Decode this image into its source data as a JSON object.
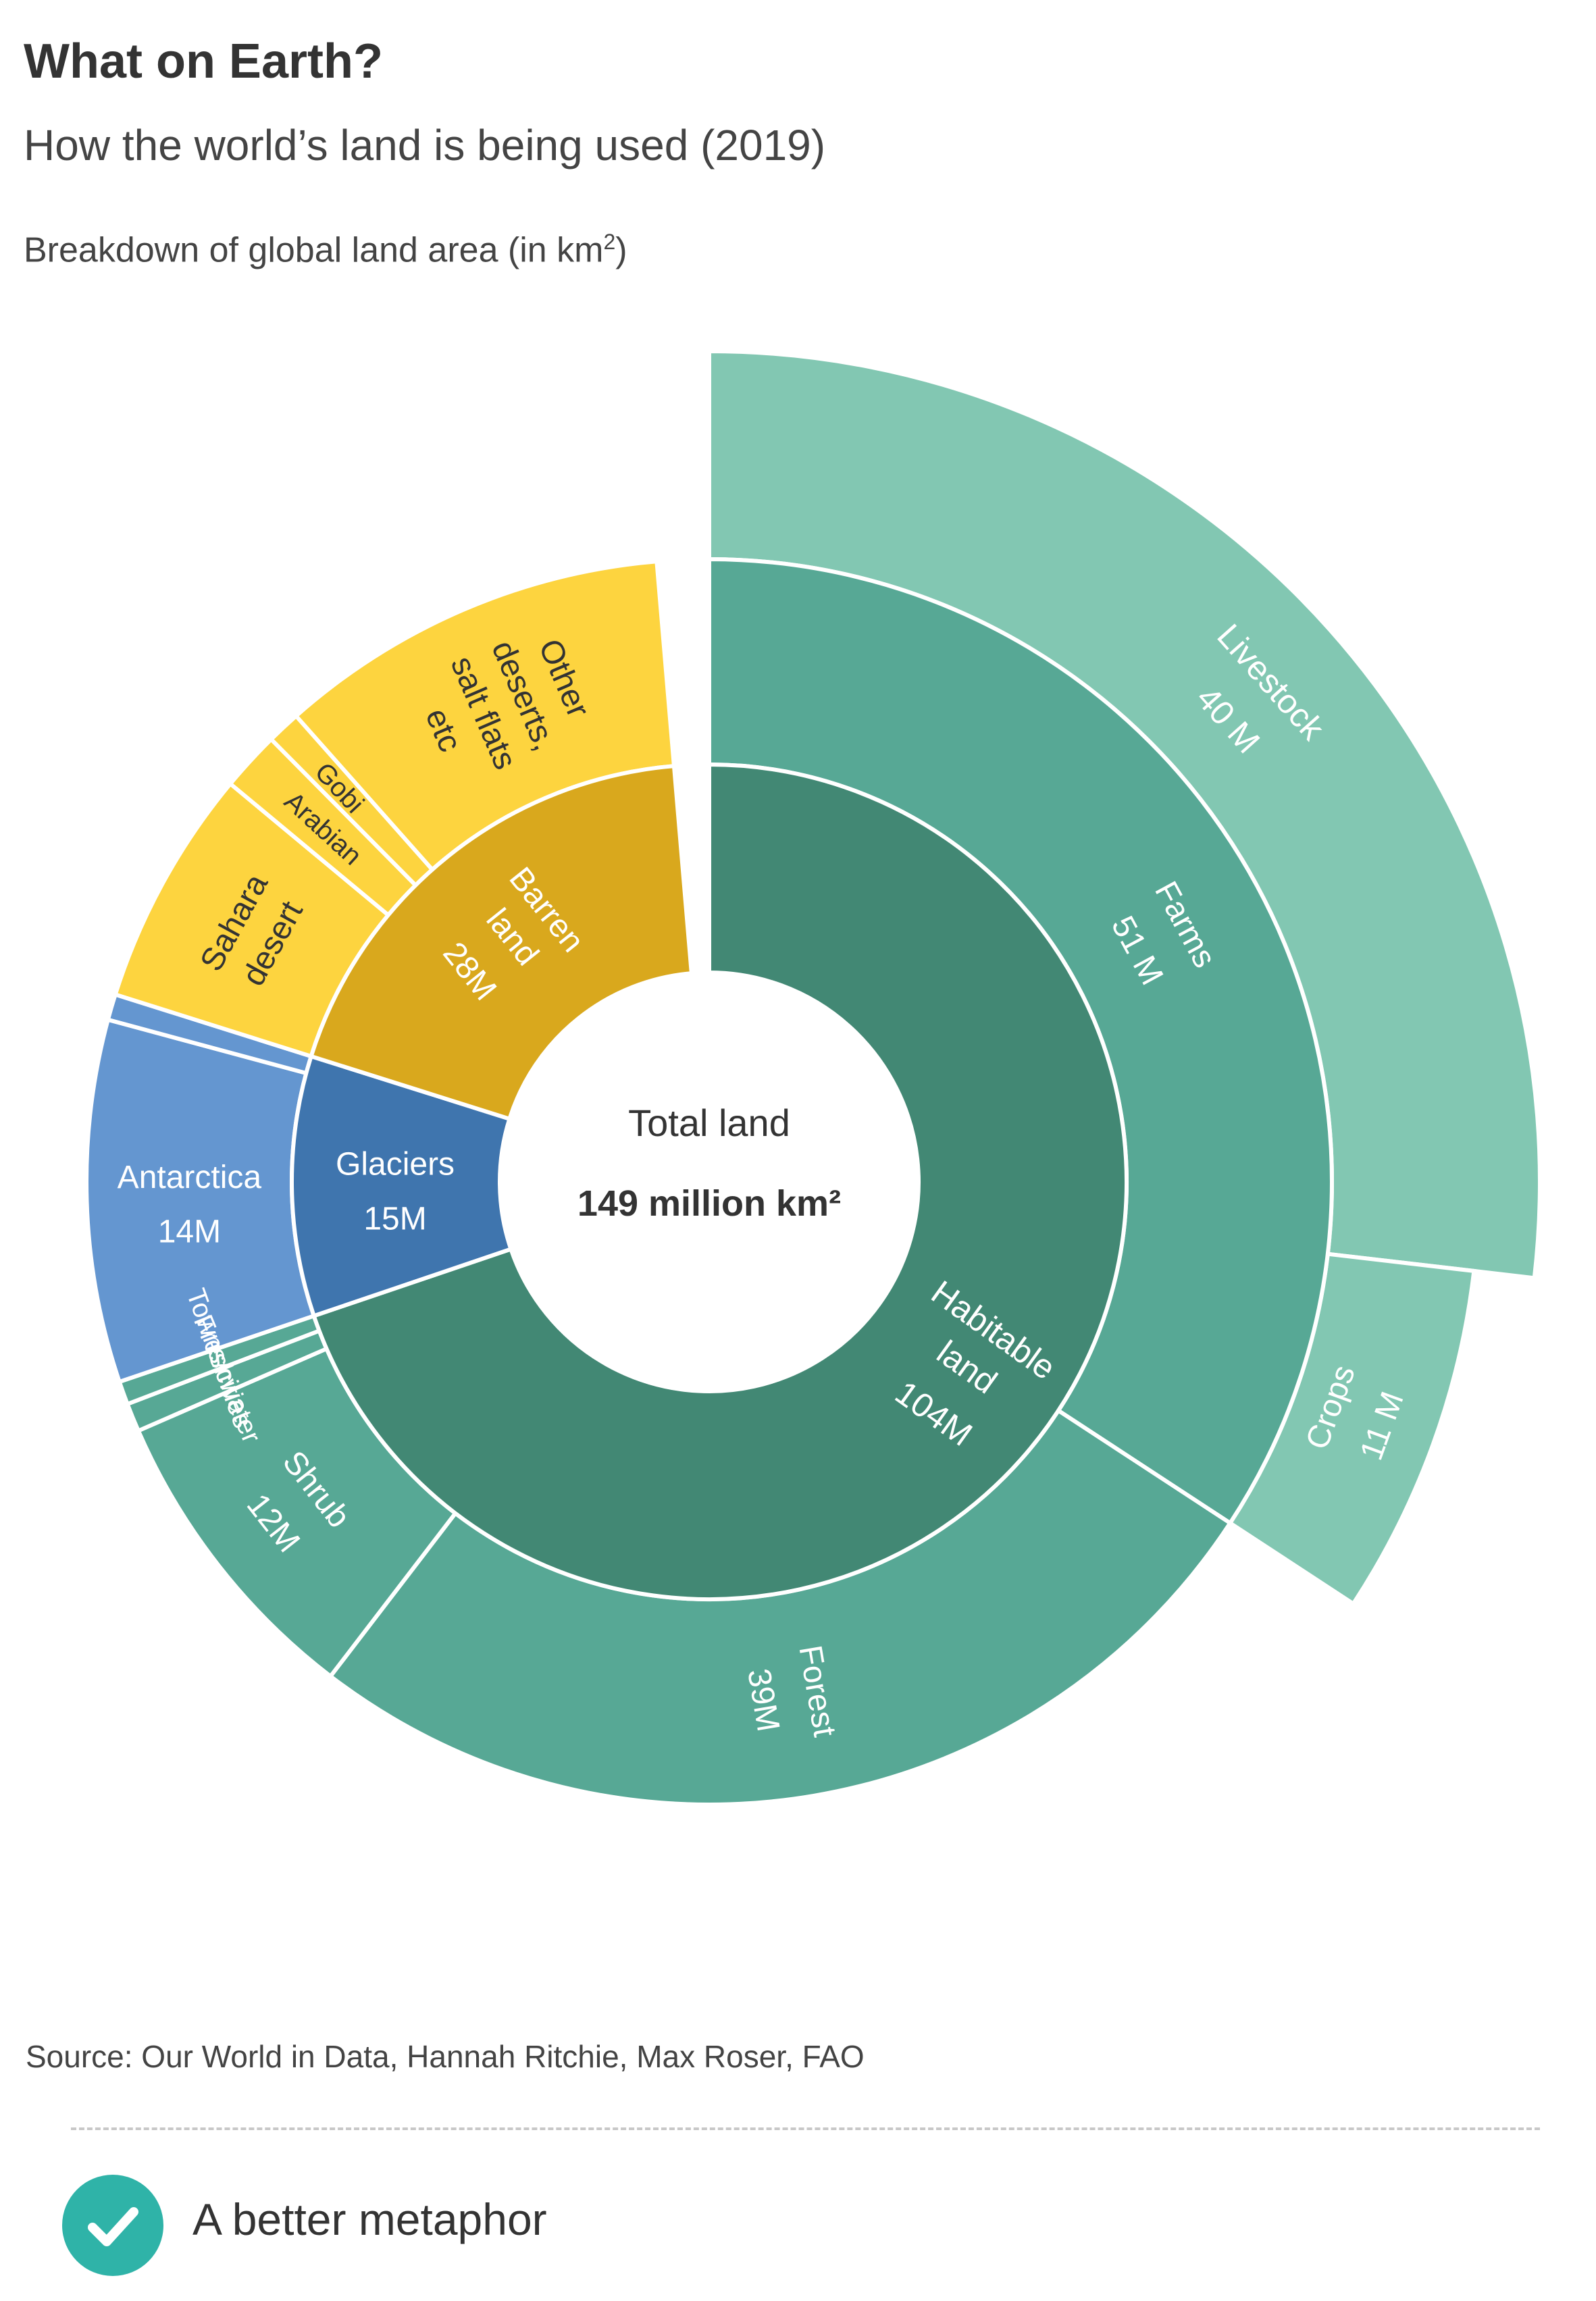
{
  "header": {
    "title": "What on Earth?",
    "subtitle": "How the world’s land is being used (2019)",
    "caption_prefix": "Breakdown of global land area (in km",
    "caption_sup": "2",
    "caption_suffix": ")"
  },
  "chart_data": {
    "type": "sunburst",
    "center": {
      "line1": "Total land",
      "line2": "149 million km²",
      "total": 149,
      "unit": "million km²"
    },
    "rings": [
      {
        "level": 1,
        "segments": [
          {
            "key": "habitable",
            "lines": [
              "Habitable",
              "land",
              "104M"
            ],
            "value": 104,
            "color": "#428874",
            "label_color": "#ffffff"
          },
          {
            "key": "glaciers",
            "lines": [
              "Glaciers",
              "15M"
            ],
            "value": 15,
            "color": "#3f75ae",
            "label_color": "#ffffff"
          },
          {
            "key": "barren",
            "lines": [
              "Barren",
              "land",
              "28M"
            ],
            "value": 28,
            "color": "#d9a81d",
            "label_color": "#ffffff"
          }
        ]
      },
      {
        "level": 2,
        "segments": [
          {
            "key": "farms",
            "parent": "habitable",
            "lines": [
              "Farms",
              "51 M"
            ],
            "value": 51,
            "color": "#57a895",
            "label_color": "#ffffff"
          },
          {
            "key": "forest",
            "parent": "habitable",
            "lines": [
              "Forest",
              "39M"
            ],
            "value": 39,
            "color": "#57a895",
            "label_color": "#ffffff"
          },
          {
            "key": "shrub",
            "parent": "habitable",
            "lines": [
              "Shrub",
              "12M"
            ],
            "value": 12,
            "color": "#57a895",
            "label_color": "#ffffff"
          },
          {
            "key": "freshwater",
            "parent": "habitable",
            "lines": [
              "Freshwater"
            ],
            "value": 1.1,
            "color": "#57a895",
            "label_color": "#ffffff"
          },
          {
            "key": "towns",
            "parent": "habitable",
            "lines": [
              "Towns/cities"
            ],
            "value": 0.9,
            "color": "#57a895",
            "label_color": "#ffffff"
          },
          {
            "key": "antarctica",
            "parent": "glaciers",
            "lines": [
              "Antarctica",
              "14M"
            ],
            "value": 14,
            "color": "#6496d0",
            "label_color": "#ffffff"
          },
          {
            "key": "glaciers_other",
            "parent": "glaciers",
            "lines": [],
            "value": 1,
            "color": "#6496d0",
            "label_color": "#ffffff"
          },
          {
            "key": "sahara",
            "parent": "barren",
            "lines": [
              "Sahara",
              "desert"
            ],
            "value": 9.2,
            "color": "#fdd43f",
            "label_color": "#333333"
          },
          {
            "key": "arabian",
            "parent": "barren",
            "lines": [
              "Arabian"
            ],
            "value": 2.3,
            "color": "#fdd43f",
            "label_color": "#333333"
          },
          {
            "key": "gobi",
            "parent": "barren",
            "lines": [
              "Gobi"
            ],
            "value": 1.3,
            "color": "#fdd43f",
            "label_color": "#333333"
          },
          {
            "key": "other_deserts",
            "parent": "barren",
            "lines": [
              "Other",
              "deserts,",
              "salt flats",
              "etc"
            ],
            "value": 15.2,
            "color": "#fdd43f",
            "label_color": "#333333"
          }
        ]
      },
      {
        "level": 3,
        "segments": [
          {
            "key": "livestock",
            "parent": "farms",
            "lines": [
              "Livestock",
              "40 M"
            ],
            "value": 40,
            "color": "#82c7b2",
            "label_color": "#ffffff"
          },
          {
            "key": "crops",
            "parent": "farms",
            "lines": [
              "Crops",
              "11 M"
            ],
            "value": 11,
            "color": "#82c7b2",
            "label_color": "#ffffff"
          }
        ]
      }
    ]
  },
  "footer": {
    "source": "Source: Our World in Data, Hannah Ritchie, Max Roser, FAO",
    "verdict": "A better metaphor",
    "verdict_icon": "check-icon",
    "accent_color": "#2fb3a8"
  }
}
